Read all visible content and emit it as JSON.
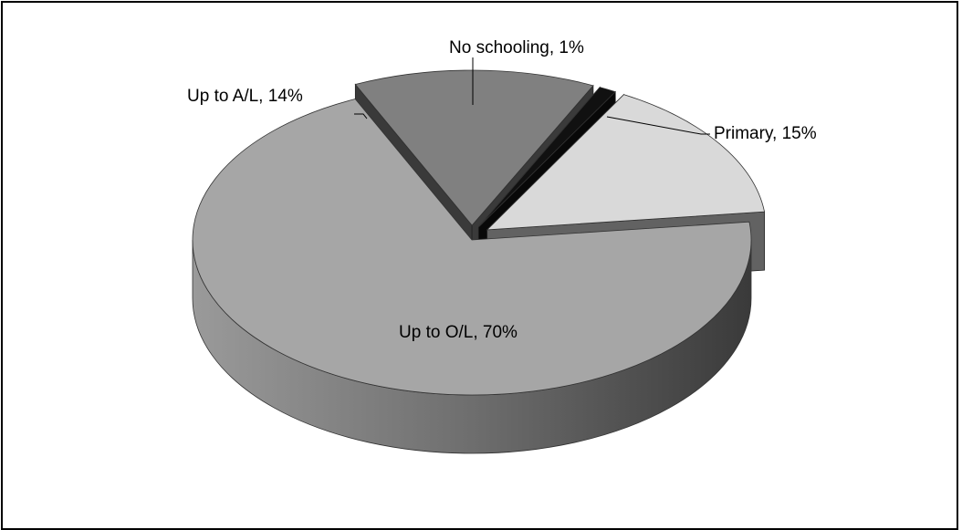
{
  "chart_data": {
    "type": "pie",
    "style": "3d-exploded",
    "title": "",
    "slices": [
      {
        "label": "Up to O/L",
        "value": 70,
        "display": "Up to O/L, 70%",
        "color": "#a6a6a6"
      },
      {
        "label": "Up to A/L",
        "value": 14,
        "display": "Up to A/L, 14%",
        "color": "#808080"
      },
      {
        "label": "No schooling",
        "value": 1,
        "display": "No schooling, 1%",
        "color": "#111111"
      },
      {
        "label": "Primary",
        "value": 15,
        "display": "Primary, 15%",
        "color": "#d9d9d9"
      }
    ],
    "legend": "none",
    "data_labels": "outside-with-leader-lines"
  }
}
